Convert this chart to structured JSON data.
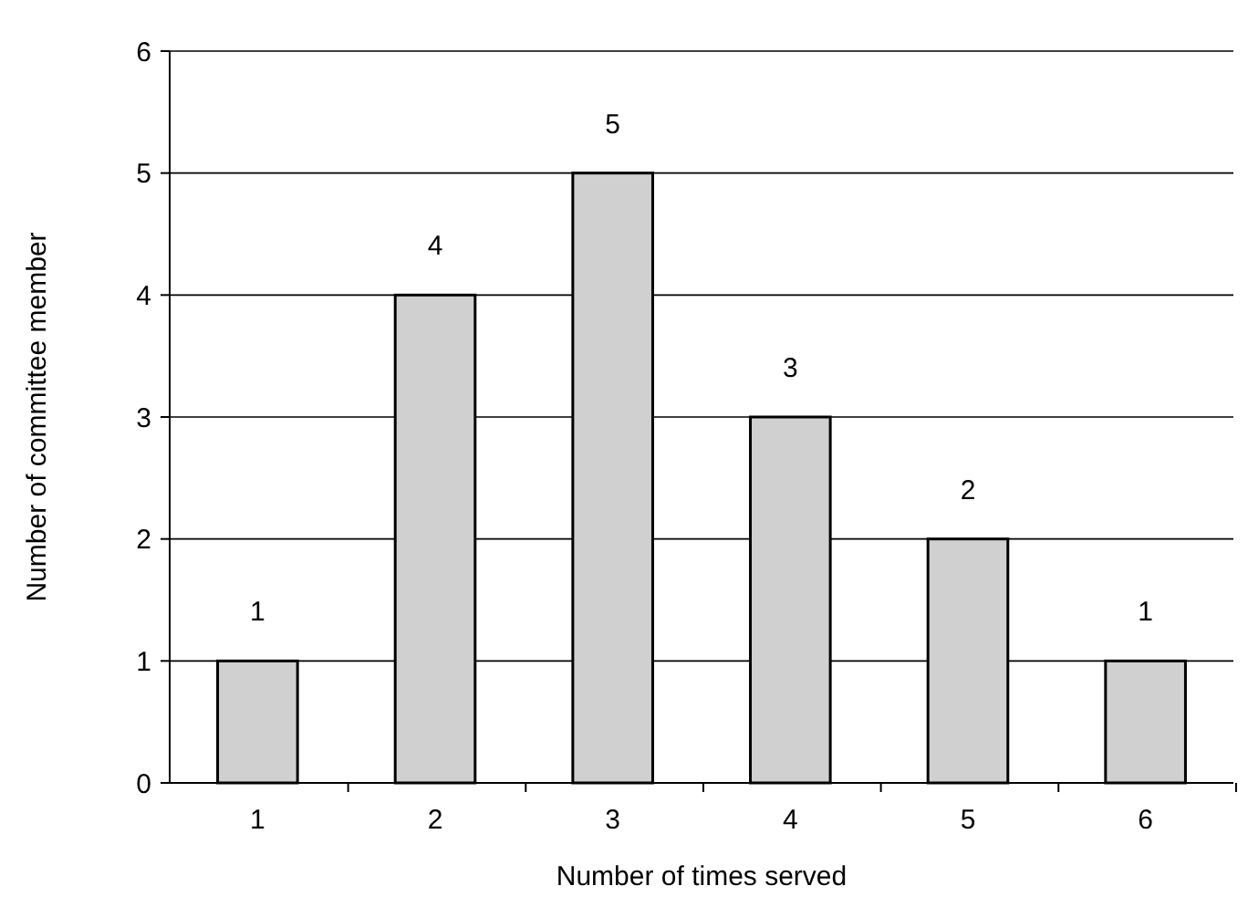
{
  "chart_data": {
    "type": "bar",
    "xlabel": "Number of times served",
    "ylabel": "Number of committee member",
    "categories": [
      "1",
      "2",
      "3",
      "4",
      "5",
      "6"
    ],
    "values": [
      1,
      4,
      5,
      3,
      2,
      1
    ],
    "color": "#d0d0d0",
    "ylim": [
      0,
      6
    ],
    "yticks": [
      0,
      1,
      2,
      3,
      4,
      5,
      6
    ],
    "grid": "y",
    "data_labels": true
  }
}
